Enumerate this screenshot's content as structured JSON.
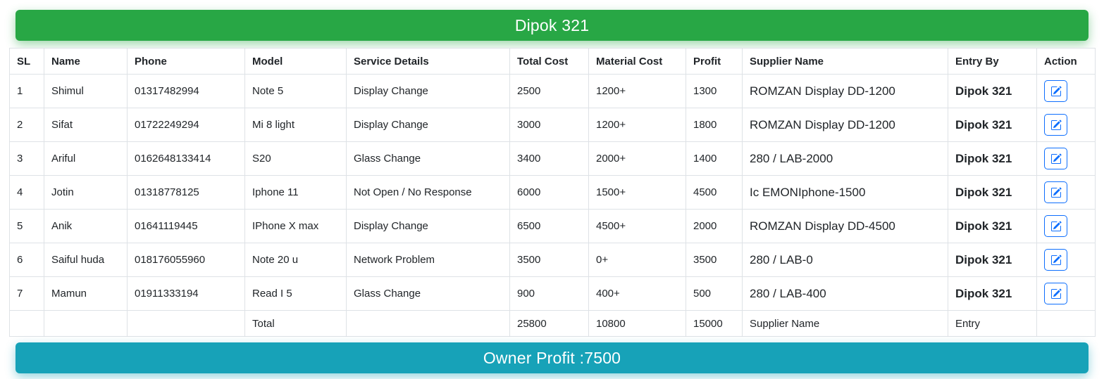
{
  "header": {
    "title": "Dipok 321"
  },
  "footer": {
    "owner_profit": "Owner Profit :7500"
  },
  "colors": {
    "banner_green": "#28a745",
    "banner_teal": "#17a2b8",
    "edit_blue": "#0d6efd",
    "border": "#dee2e6",
    "text": "#212529"
  },
  "icons": {
    "edit": "pencil-square-icon"
  },
  "table": {
    "columns": [
      "SL",
      "Name",
      "Phone",
      "Model",
      "Service Details",
      "Total Cost",
      "Material Cost",
      "Profit",
      "Supplier Name",
      "Entry By",
      "Action"
    ],
    "rows": [
      {
        "sl": "1",
        "name": "Shimul",
        "phone": "01317482994",
        "model": "Note 5",
        "service": "Display Change",
        "total_cost": "2500",
        "material_cost": "1200+",
        "profit": "1300",
        "supplier": "ROMZAN Display DD-1200",
        "entry_by": "Dipok 321"
      },
      {
        "sl": "2",
        "name": "Sifat",
        "phone": "01722249294",
        "model": "Mi 8 light",
        "service": "Display Change",
        "total_cost": "3000",
        "material_cost": "1200+",
        "profit": "1800",
        "supplier": "ROMZAN Display DD-1200",
        "entry_by": "Dipok 321"
      },
      {
        "sl": "3",
        "name": "Ariful",
        "phone": "0162648133414",
        "model": "S20",
        "service": "Glass Change",
        "total_cost": "3400",
        "material_cost": "2000+",
        "profit": "1400",
        "supplier": "280 / LAB-2000",
        "entry_by": "Dipok 321"
      },
      {
        "sl": "4",
        "name": "Jotin",
        "phone": "01318778125",
        "model": "Iphone 11",
        "service": "Not Open / No Response",
        "total_cost": "6000",
        "material_cost": "1500+",
        "profit": "4500",
        "supplier": "Ic EMONIphone-1500",
        "entry_by": "Dipok 321"
      },
      {
        "sl": "5",
        "name": "Anik",
        "phone": "01641119445",
        "model": "IPhone X max",
        "service": "Display Change",
        "total_cost": "6500",
        "material_cost": "4500+",
        "profit": "2000",
        "supplier": "ROMZAN Display DD-4500",
        "entry_by": "Dipok 321"
      },
      {
        "sl": "6",
        "name": "Saiful huda",
        "phone": "018176055960",
        "model": "Note 20 u",
        "service": "Network Problem",
        "total_cost": "3500",
        "material_cost": "0+",
        "profit": "3500",
        "supplier": "280 / LAB-0",
        "entry_by": "Dipok 321"
      },
      {
        "sl": "7",
        "name": "Mamun",
        "phone": "01911333194",
        "model": "Read I 5",
        "service": "Glass Change",
        "total_cost": "900",
        "material_cost": "400+",
        "profit": "500",
        "supplier": "280 / LAB-400",
        "entry_by": "Dipok 321"
      }
    ],
    "totals": {
      "label": "Total",
      "total_cost": "25800",
      "material_cost": "10800",
      "profit": "15000",
      "supplier": "Supplier Name",
      "entry_by": "Entry"
    }
  }
}
